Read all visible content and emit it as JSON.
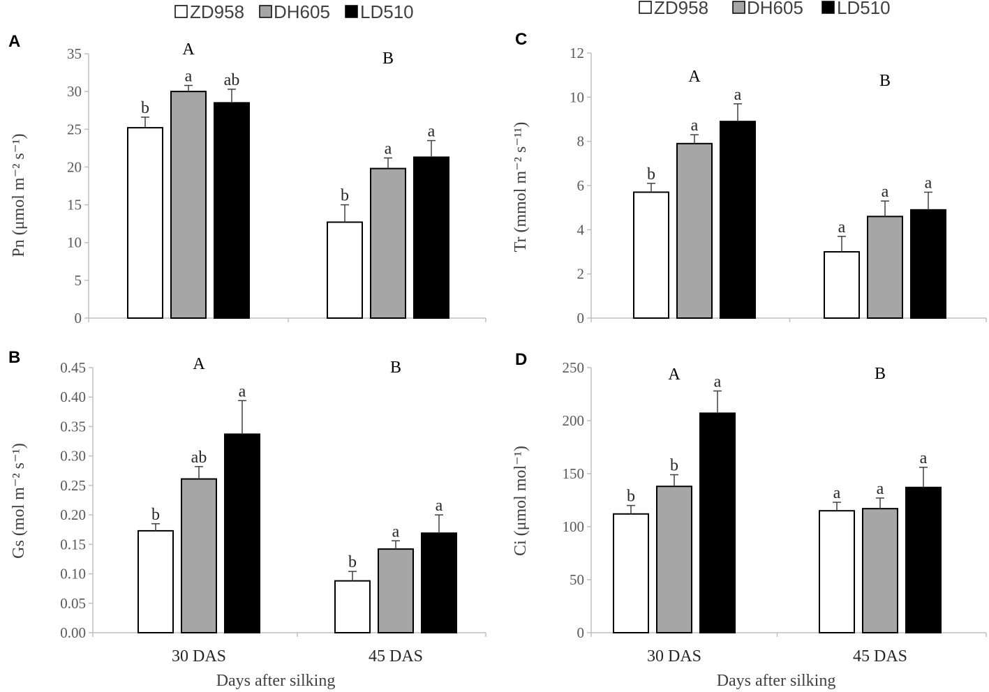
{
  "legend": [
    {
      "label": "ZD958",
      "color": "#ffffff"
    },
    {
      "label": "DH605",
      "color": "#a6a6a6"
    },
    {
      "label": "LD510",
      "color": "#000000"
    }
  ],
  "chart_data": [
    {
      "type": "bar",
      "panel": "A",
      "categories": [
        "30 DAS",
        "45 DAS"
      ],
      "ylabel": "Pn (μmol m⁻² s⁻¹)",
      "xlabel": "",
      "ylim": [
        0,
        35
      ],
      "yticks": [
        "0",
        "5",
        "10",
        "15",
        "20",
        "25",
        "30",
        "35"
      ],
      "group_letters": [
        "A",
        "B"
      ],
      "series": [
        {
          "name": "ZD958",
          "values": [
            25.2,
            12.7
          ],
          "errors": [
            1.4,
            2.3
          ],
          "letters": [
            "b",
            "b"
          ]
        },
        {
          "name": "DH605",
          "values": [
            30.0,
            19.8
          ],
          "errors": [
            0.8,
            1.4
          ],
          "letters": [
            "a",
            "a"
          ]
        },
        {
          "name": "LD510",
          "values": [
            28.5,
            21.3
          ],
          "errors": [
            1.8,
            2.2
          ],
          "letters": [
            "ab",
            "a"
          ]
        }
      ]
    },
    {
      "type": "bar",
      "panel": "B",
      "categories": [
        "30 DAS",
        "45 DAS"
      ],
      "ylabel": "Gs (mol m⁻² s⁻¹)",
      "xlabel": "Days after silking",
      "ylim": [
        0,
        0.45
      ],
      "yticks": [
        "0.00",
        "0.05",
        "0.10",
        "0.15",
        "0.20",
        "0.25",
        "0.30",
        "0.35",
        "0.40",
        "0.45"
      ],
      "group_letters": [
        "A",
        "B"
      ],
      "series": [
        {
          "name": "ZD958",
          "values": [
            0.173,
            0.088
          ],
          "errors": [
            0.012,
            0.016
          ],
          "letters": [
            "b",
            "b"
          ]
        },
        {
          "name": "DH605",
          "values": [
            0.261,
            0.142
          ],
          "errors": [
            0.021,
            0.014
          ],
          "letters": [
            "ab",
            "a"
          ]
        },
        {
          "name": "LD510",
          "values": [
            0.337,
            0.169
          ],
          "errors": [
            0.057,
            0.031
          ],
          "letters": [
            "a",
            "a"
          ]
        }
      ]
    },
    {
      "type": "bar",
      "panel": "C",
      "categories": [
        "30 DAS",
        "45 DAS"
      ],
      "ylabel": "Tr (mmol m⁻² s⁻¹¹)",
      "xlabel": "",
      "ylim": [
        0,
        12
      ],
      "yticks": [
        "0",
        "2",
        "4",
        "6",
        "8",
        "10",
        "12"
      ],
      "group_letters": [
        "A",
        "B"
      ],
      "series": [
        {
          "name": "ZD958",
          "values": [
            5.7,
            3.0
          ],
          "errors": [
            0.4,
            0.7
          ],
          "letters": [
            "b",
            "a"
          ]
        },
        {
          "name": "DH605",
          "values": [
            7.9,
            4.6
          ],
          "errors": [
            0.4,
            0.7
          ],
          "letters": [
            "a",
            "a"
          ]
        },
        {
          "name": "LD510",
          "values": [
            8.9,
            4.9
          ],
          "errors": [
            0.8,
            0.8
          ],
          "letters": [
            "a",
            "a"
          ]
        }
      ]
    },
    {
      "type": "bar",
      "panel": "D",
      "categories": [
        "30 DAS",
        "45 DAS"
      ],
      "ylabel": "Ci (μmol mol⁻¹)",
      "xlabel": "Days after silking",
      "ylim": [
        0,
        250
      ],
      "yticks": [
        "0",
        "50",
        "100",
        "150",
        "200",
        "250"
      ],
      "group_letters": [
        "A",
        "B"
      ],
      "series": [
        {
          "name": "ZD958",
          "values": [
            112,
            115
          ],
          "errors": [
            8,
            8
          ],
          "letters": [
            "b",
            "a"
          ]
        },
        {
          "name": "DH605",
          "values": [
            138,
            117
          ],
          "errors": [
            11,
            10
          ],
          "letters": [
            "b",
            "a"
          ]
        },
        {
          "name": "LD510",
          "values": [
            207,
            137
          ],
          "errors": [
            21,
            19
          ],
          "letters": [
            "a",
            "a"
          ]
        }
      ]
    }
  ]
}
